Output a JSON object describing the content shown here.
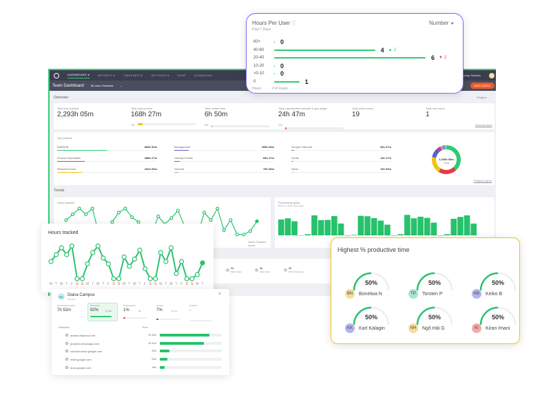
{
  "nav": {
    "items": [
      "DASHBOARD ▾",
      "REPORTS ▾",
      "TIMESHEETS",
      "SETTINGS ▾",
      "SHOP",
      "DOWNLOAD"
    ],
    "user": "Arlay Osiaris",
    "add_users": "ADD USERS"
  },
  "subheader": {
    "title": "Team Dashboard",
    "filter": "All Users Selected"
  },
  "overview": {
    "title": "Overview",
    "widgets": "Widgets",
    "view_all": "View all users",
    "stats": [
      {
        "label": "Total time tracked",
        "value": "2,293h 05m"
      },
      {
        "label": "Total manual time",
        "value": "168h 27m",
        "pct": "7%",
        "fill": 7,
        "color": "#f1c40f"
      },
      {
        "label": "Total mobile time",
        "value": "6h 50m",
        "pct": "0%",
        "fill": 1,
        "color": "#999"
      },
      {
        "label": "Total unproductive website & app usage",
        "value": "24h 47m",
        "pct": "1%",
        "fill": 2,
        "color": "#e74c3c"
      },
      {
        "label": "Total active users",
        "value": "19"
      },
      {
        "label": "Total new users",
        "value": "1"
      }
    ]
  },
  "top_projects": {
    "title": "Top projects",
    "projects_report": "Projects report",
    "total": "2,293h 05m",
    "total_label": "Total",
    "items": [
      {
        "name": "B2B/B2B",
        "value": "868h 54m",
        "fill": 38,
        "color": "#2ecc71"
      },
      {
        "name": "Product Specialists",
        "value": "488h 27m",
        "fill": 21,
        "color": "#e63946"
      },
      {
        "name": "Research team",
        "value": "432h 09m",
        "fill": 19,
        "color": "#f1c40f"
      },
      {
        "name": "Management",
        "value": "255h 28m",
        "fill": 11,
        "color": "#5b5fc7"
      },
      {
        "name": "HubSpot Deals",
        "value": "89h 47m",
        "fill": 4,
        "color": "#c0398f"
      },
      {
        "name": "General",
        "value": "79h 08m",
        "fill": 3,
        "color": "#aaa"
      },
      {
        "name": "Google Calendar",
        "value": "40h 07m",
        "fill": 2,
        "color": "#3498db"
      },
      {
        "name": "Gmail",
        "value": "13h 17m",
        "fill": 1,
        "color": "#999"
      },
      {
        "name": "Other",
        "value": "13h 53m",
        "fill": 1,
        "color": "#ccc"
      }
    ]
  },
  "trends": {
    "title": "Trends",
    "hours_tracked": "Hours tracked",
    "hours_report": "Hours Tracked report",
    "productivity": "Productivity goals",
    "productivity_sub": "Based on web & app usage"
  },
  "users_row": [
    {
      "n": "11",
      "name": "Moritz Kane"
    },
    {
      "n": "11",
      "name": "Jason Seul"
    },
    {
      "n": "11",
      "name": "Chris Armstrong"
    }
  ],
  "hours_per_user": {
    "title": "Hours Per User",
    "subtitle": "Past 7 Days",
    "dropdown": "Number",
    "x_label": "Hours",
    "y_label": "# of Users",
    "rows": [
      {
        "range": "60+",
        "count": 0
      },
      {
        "range": "40-60",
        "count": 4,
        "delta": "2",
        "dir": "up"
      },
      {
        "range": "20-40",
        "count": 6,
        "delta": "2",
        "dir": "down"
      },
      {
        "range": "10-20",
        "count": 0
      },
      {
        "range": ">0-10",
        "count": 0
      },
      {
        "range": "0",
        "count": 1
      }
    ]
  },
  "hours_tracked_card": {
    "title": "Hours tracked",
    "days": [
      "M",
      "T",
      "W",
      "T",
      "F",
      "S",
      "S",
      "M",
      "T",
      "W",
      "T",
      "F",
      "S",
      "S",
      "M",
      "T",
      "W",
      "T",
      "F",
      "S",
      "S",
      "M",
      "T",
      "W",
      "T",
      "F",
      "S",
      "S",
      "M",
      "T"
    ],
    "values": [
      5,
      7,
      9,
      7,
      9.5,
      0,
      0,
      4.3,
      7.6,
      9.5,
      6,
      4.3,
      0,
      0,
      6.3,
      3.6,
      5.7,
      8.3,
      2.9,
      0,
      0,
      7.6,
      5,
      9,
      1.5,
      5,
      0,
      0,
      1.2,
      4.6
    ]
  },
  "productivity_bars": [
    70,
    75,
    62,
    0,
    5,
    88,
    67,
    68,
    85,
    52,
    0,
    2,
    86,
    84,
    76,
    65,
    47,
    0,
    5,
    90,
    75,
    82,
    77,
    56,
    0,
    5,
    73,
    81,
    88,
    52
  ],
  "user_detail": {
    "name": "Diana Campos",
    "initials": "DC",
    "role": "Info tech",
    "stats": [
      {
        "label": "All websites & apps",
        "value": "7h 52m"
      },
      {
        "label": "Productive",
        "value": "92%",
        "sub": "6h 58m",
        "fill": 92,
        "color": "#2ecc71"
      },
      {
        "label": "Unproductive",
        "value": "1%",
        "sub": "5m",
        "fill": 3,
        "color": "#e63946"
      },
      {
        "label": "Neutral",
        "value": "7%",
        "sub": "1h 5m",
        "fill": 7,
        "color": "#555"
      },
      {
        "label": "Unrated",
        "value": "-",
        "fill": 0,
        "color": "#ccc"
      }
    ],
    "col_site": "Websites",
    "col_time": "Time",
    "sites": [
      {
        "name": "amara.helpscout.net",
        "time": "2h 59m",
        "fill": 80
      },
      {
        "name": "projects.minionapp.com",
        "time": "2h 51m",
        "fill": 71
      },
      {
        "name": "console.cloud.google.com",
        "time": "33m",
        "fill": 16
      },
      {
        "name": "meet.google.com",
        "time": "20m",
        "fill": 12
      },
      {
        "name": "docs.google.com",
        "time": "16m",
        "fill": 8
      }
    ]
  },
  "productive_time": {
    "title": "Highest % productive time",
    "users": [
      {
        "pct": "50%",
        "value": 50,
        "initials": "BN",
        "name": "Bonelwa N",
        "color": "#f7dc9a"
      },
      {
        "pct": "50%",
        "value": 50,
        "initials": "TP",
        "name": "Torsten P",
        "color": "#a8e6cf"
      },
      {
        "pct": "50%",
        "value": 50,
        "initials": "KB",
        "name": "Keiko B",
        "color": "#b4b4f0"
      },
      {
        "pct": "50%",
        "value": 50,
        "initials": "KK",
        "name": "Karl Kalagin",
        "color": "#b4b4f0"
      },
      {
        "pct": "50%",
        "value": 50,
        "initials": "NH",
        "name": "Ngô Hải G",
        "color": "#f7dc9a"
      },
      {
        "pct": "50%",
        "value": 50,
        "initials": "KI",
        "name": "Kiran Imani",
        "color": "#f4aaa8"
      }
    ]
  },
  "colors": {
    "accent": "#2ecc71",
    "nav": "#3b3e4f",
    "add_users": "#f05a28",
    "purple_border": "#7b68ee",
    "yellow_border": "#f1c40f"
  }
}
